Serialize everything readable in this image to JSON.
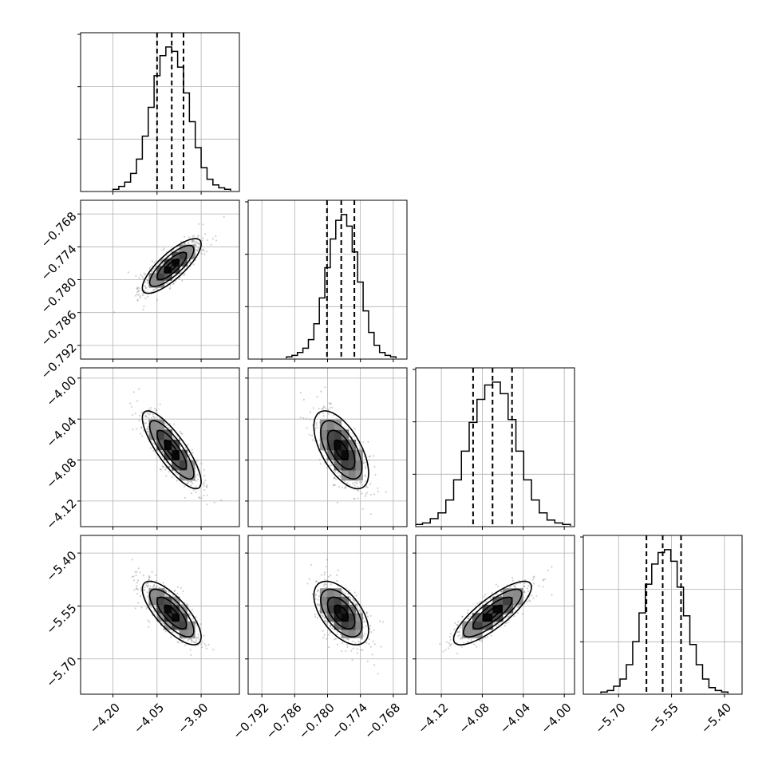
{
  "chart_data": {
    "type": "corner",
    "grid": true,
    "parameters": [
      {
        "id": "p1",
        "range": [
          -4.31,
          -3.77
        ],
        "ticks": [
          {
            "v": -4.2,
            "label": "−4.20"
          },
          {
            "v": -4.05,
            "label": "−4.05"
          },
          {
            "v": -3.9,
            "label": "−3.90"
          }
        ],
        "mean": -4.0,
        "std": 0.05,
        "quantiles": [
          -4.05,
          -4.0,
          -3.96
        ]
      },
      {
        "id": "p2",
        "range": [
          -0.7945,
          -0.7655
        ],
        "ticks": [
          {
            "v": -0.792,
            "label": "−0.792"
          },
          {
            "v": -0.786,
            "label": "−0.786"
          },
          {
            "v": -0.78,
            "label": "−0.780"
          },
          {
            "v": -0.774,
            "label": "−0.774"
          },
          {
            "v": -0.768,
            "label": "−0.768"
          }
        ],
        "mean": -0.7775,
        "std": 0.0025,
        "quantiles": [
          -0.7801,
          -0.7775,
          -0.7751
        ]
      },
      {
        "id": "p3",
        "range": [
          -4.145,
          -3.99
        ],
        "ticks": [
          {
            "v": -4.12,
            "label": "−4.12"
          },
          {
            "v": -4.08,
            "label": "−4.08"
          },
          {
            "v": -4.04,
            "label": "−4.04"
          },
          {
            "v": -4.0,
            "label": "−4.00"
          }
        ],
        "mean": -4.07,
        "std": 0.019,
        "quantiles": [
          -4.089,
          -4.07,
          -4.051
        ]
      },
      {
        "id": "p4",
        "range": [
          -5.8,
          -5.35
        ],
        "ticks": [
          {
            "v": -5.7,
            "label": "−5.70"
          },
          {
            "v": -5.55,
            "label": "−5.55"
          },
          {
            "v": -5.4,
            "label": "−5.40"
          }
        ],
        "mean": -5.57,
        "std": 0.045,
        "quantiles": [
          -5.621,
          -5.575,
          -5.523
        ]
      }
    ],
    "correlations": [
      {
        "pair": [
          "p1",
          "p2"
        ],
        "rho": 0.8
      },
      {
        "pair": [
          "p1",
          "p3"
        ],
        "rho": -0.82
      },
      {
        "pair": [
          "p1",
          "p4"
        ],
        "rho": -0.75
      },
      {
        "pair": [
          "p2",
          "p3"
        ],
        "rho": -0.6
      },
      {
        "pair": [
          "p2",
          "p4"
        ],
        "rho": -0.55
      },
      {
        "pair": [
          "p3",
          "p4"
        ],
        "rho": 0.82
      }
    ],
    "histograms": {
      "p1": [
        0.01,
        0.03,
        0.06,
        0.12,
        0.22,
        0.38,
        0.58,
        0.8,
        0.94,
        1.0,
        0.97,
        0.86,
        0.68,
        0.48,
        0.3,
        0.16,
        0.08,
        0.04,
        0.02,
        0.01
      ],
      "p2": [
        0.01,
        0.02,
        0.04,
        0.07,
        0.13,
        0.24,
        0.42,
        0.63,
        0.83,
        0.96,
        1.0,
        0.92,
        0.74,
        0.53,
        0.33,
        0.18,
        0.09,
        0.04,
        0.02,
        0.01
      ],
      "p3": [
        0.01,
        0.02,
        0.05,
        0.09,
        0.18,
        0.32,
        0.52,
        0.72,
        0.88,
        0.98,
        1.0,
        0.92,
        0.74,
        0.52,
        0.32,
        0.18,
        0.09,
        0.04,
        0.02,
        0.01
      ],
      "p4": [
        0.01,
        0.02,
        0.05,
        0.1,
        0.2,
        0.36,
        0.56,
        0.76,
        0.9,
        0.98,
        1.0,
        0.92,
        0.74,
        0.54,
        0.34,
        0.2,
        0.1,
        0.04,
        0.02,
        0.01
      ]
    }
  }
}
